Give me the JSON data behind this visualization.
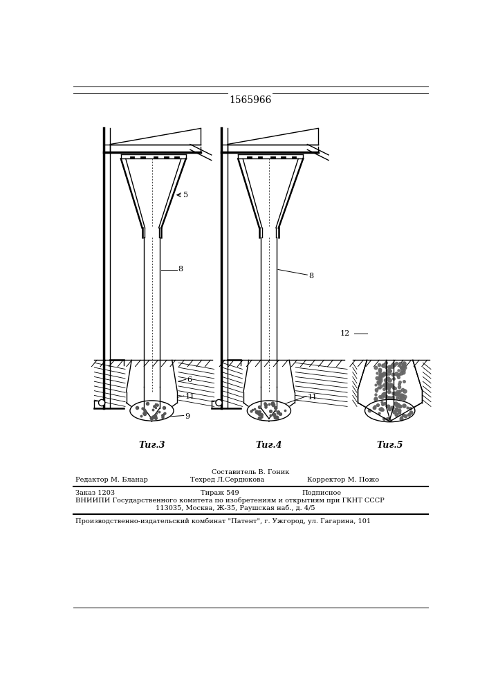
{
  "title": "1565966",
  "fig3_label": "Τиг.3",
  "fig4_label": "Τиг.4",
  "fig5_label": "Τиг.5",
  "footer_line1": "Составитель В. Гоник",
  "footer_line2a": "Редактор М. Бланар",
  "footer_line2b": "Техред Л.Сердюкова",
  "footer_line2c": "Корректор М. Пожо",
  "footer_line3a": "Заказ 1203",
  "footer_line3b": "Тираж 549",
  "footer_line3c": "Подписное",
  "footer_line4": "ВНИИПИ Государственного комитета по изобретениям и открытиям при ГКНТ СССР",
  "footer_line5": "113035, Москва, Ж-35, Раушская наб., д. 4/5",
  "footer_line6": "Производственно-издательский комбинат \"Патент\", г. Ужгород, ул. Гагарина, 101"
}
